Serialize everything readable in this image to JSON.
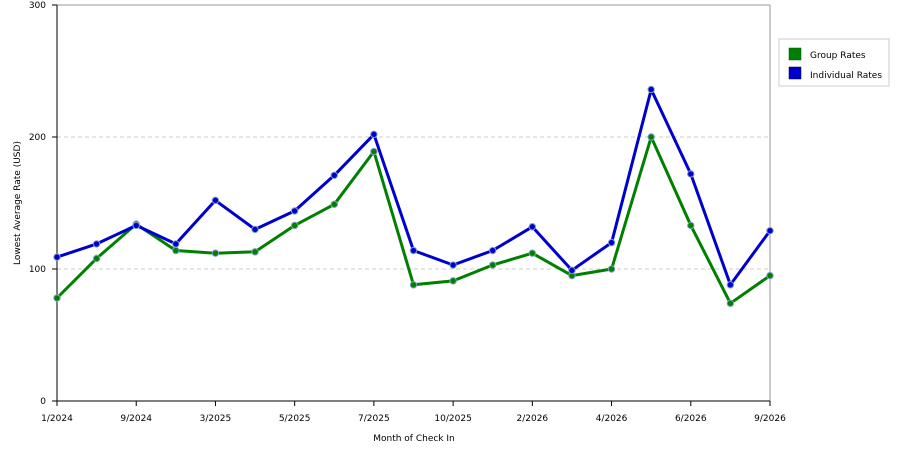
{
  "chart_data": {
    "type": "line",
    "xlabel": "Month of Check In",
    "ylabel": "Lowest Average Rate (USD)",
    "ylim": [
      0,
      300
    ],
    "yticks": [
      0,
      100,
      200,
      300
    ],
    "grid": "horizontal dashed",
    "legend_position": "right",
    "x": [
      "1/2024",
      "",
      "9/2024",
      "",
      "3/2025",
      "",
      "5/2025",
      "",
      "7/2025",
      "",
      "10/2025",
      "",
      "2/2026",
      "",
      "4/2026",
      "",
      "6/2026",
      "",
      "9/2026"
    ],
    "x_tick_labels": [
      "1/2024",
      "9/2024",
      "3/2025",
      "5/2025",
      "7/2025",
      "10/2025",
      "2/2026",
      "4/2026",
      "6/2026",
      "9/2026"
    ],
    "series": [
      {
        "name": "Group Rates",
        "color": "#008000",
        "values": [
          78,
          108,
          134,
          114,
          112,
          113,
          133,
          149,
          189,
          88,
          91,
          103,
          112,
          95,
          100,
          200,
          133,
          74,
          95
        ]
      },
      {
        "name": "Individual Rates",
        "color": "#0000cc",
        "values": [
          109,
          119,
          133,
          119,
          152,
          130,
          144,
          171,
          202,
          114,
          103,
          114,
          132,
          99,
          120,
          236,
          172,
          88,
          129
        ]
      }
    ]
  }
}
